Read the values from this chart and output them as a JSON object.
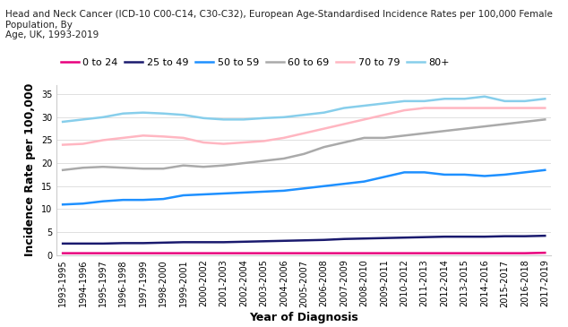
{
  "title": "Head and Neck Cancer (ICD-10 C00-C14, C30-C32), European Age-Standardised Incidence Rates per 100,000 Female Population, By\nAge, UK, 1993-2019",
  "xlabel": "Year of Diagnosis",
  "ylabel": "Incidence Rate per 100,000",
  "x_labels": [
    "1993-1995",
    "1994-1996",
    "1995-1997",
    "1996-1998",
    "1997-1999",
    "1998-2000",
    "1999-2001",
    "2000-2002",
    "2001-2003",
    "2002-2004",
    "2003-2005",
    "2004-2006",
    "2005-2007",
    "2006-2008",
    "2007-2009",
    "2008-2010",
    "2009-2011",
    "2010-2012",
    "2011-2013",
    "2012-2014",
    "2013-2015",
    "2014-2016",
    "2015-2017",
    "2016-2018",
    "2017-2019"
  ],
  "series": {
    "0 to 24": {
      "color": "#e8007d",
      "linewidth": 1.8,
      "values": [
        0.4,
        0.4,
        0.4,
        0.4,
        0.4,
        0.4,
        0.4,
        0.4,
        0.4,
        0.4,
        0.4,
        0.4,
        0.4,
        0.4,
        0.4,
        0.4,
        0.4,
        0.4,
        0.4,
        0.4,
        0.4,
        0.4,
        0.4,
        0.4,
        0.5
      ]
    },
    "25 to 49": {
      "color": "#1a1a6e",
      "linewidth": 1.8,
      "values": [
        2.5,
        2.5,
        2.5,
        2.6,
        2.6,
        2.7,
        2.8,
        2.8,
        2.8,
        2.9,
        3.0,
        3.1,
        3.2,
        3.3,
        3.5,
        3.6,
        3.7,
        3.8,
        3.9,
        4.0,
        4.0,
        4.0,
        4.1,
        4.1,
        4.2
      ]
    },
    "50 to 59": {
      "color": "#1e90ff",
      "linewidth": 1.8,
      "values": [
        11.0,
        11.2,
        11.7,
        12.0,
        12.0,
        12.2,
        13.0,
        13.2,
        13.4,
        13.6,
        13.8,
        14.0,
        14.5,
        15.0,
        15.5,
        16.0,
        17.0,
        18.0,
        18.0,
        17.5,
        17.5,
        17.2,
        17.5,
        18.0,
        18.5
      ]
    },
    "60 to 69": {
      "color": "#aaaaaa",
      "linewidth": 1.8,
      "values": [
        18.5,
        19.0,
        19.2,
        19.0,
        18.8,
        18.8,
        19.5,
        19.2,
        19.5,
        20.0,
        20.5,
        21.0,
        22.0,
        23.5,
        24.5,
        25.5,
        25.5,
        26.0,
        26.5,
        27.0,
        27.5,
        28.0,
        28.5,
        29.0,
        29.5
      ]
    },
    "70 to 79": {
      "color": "#ffb6c1",
      "linewidth": 1.8,
      "values": [
        24.0,
        24.2,
        25.0,
        25.5,
        26.0,
        25.8,
        25.5,
        24.5,
        24.2,
        24.5,
        24.8,
        25.5,
        26.5,
        27.5,
        28.5,
        29.5,
        30.5,
        31.5,
        32.0,
        32.0,
        32.0,
        32.0,
        32.0,
        32.0,
        32.0
      ]
    },
    "80+": {
      "color": "#87ceeb",
      "linewidth": 1.8,
      "values": [
        29.0,
        29.5,
        30.0,
        30.8,
        31.0,
        30.8,
        30.5,
        29.8,
        29.5,
        29.5,
        29.8,
        30.0,
        30.5,
        31.0,
        32.0,
        32.5,
        33.0,
        33.5,
        33.5,
        34.0,
        34.0,
        34.5,
        33.5,
        33.5,
        34.0
      ]
    }
  },
  "ylim": [
    0,
    37
  ],
  "yticks": [
    0,
    5,
    10,
    15,
    20,
    25,
    30,
    35
  ],
  "legend_order": [
    "0 to 24",
    "25 to 49",
    "50 to 59",
    "60 to 69",
    "70 to 79",
    "80+"
  ],
  "background_color": "#ffffff",
  "grid_color": "#e0e0e0",
  "title_fontsize": 7.5,
  "axis_label_fontsize": 9,
  "tick_fontsize": 7,
  "legend_fontsize": 8
}
